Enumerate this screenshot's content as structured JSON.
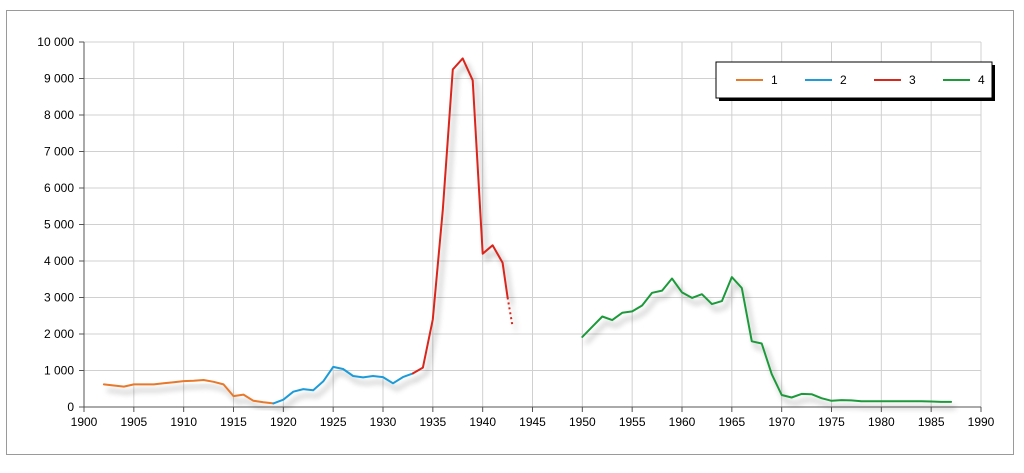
{
  "chart_data": {
    "type": "line",
    "title": "",
    "xlabel": "",
    "ylabel": "",
    "xlim": [
      1900,
      1990
    ],
    "ylim": [
      0,
      10000
    ],
    "x_ticks": [
      1900,
      1905,
      1910,
      1915,
      1920,
      1925,
      1930,
      1935,
      1940,
      1945,
      1950,
      1955,
      1960,
      1965,
      1970,
      1975,
      1980,
      1985,
      1990
    ],
    "y_ticks": [
      0,
      1000,
      2000,
      3000,
      4000,
      5000,
      6000,
      7000,
      8000,
      9000,
      10000
    ],
    "x_tick_labels": [
      "1900",
      "1905",
      "1910",
      "1915",
      "1920",
      "1925",
      "1930",
      "1935",
      "1940",
      "1945",
      "1950",
      "1955",
      "1960",
      "1965",
      "1970",
      "1975",
      "1980",
      "1985",
      "1990"
    ],
    "y_tick_labels": [
      "0",
      "1 000",
      "2 000",
      "3 000",
      "4 000",
      "5 000",
      "6 000",
      "7 000",
      "8 000",
      "9 000",
      "10 000"
    ],
    "grid": true,
    "legend_position": "top-right",
    "series": [
      {
        "name": "1",
        "color": "#e8782a",
        "x": [
          1902,
          1903,
          1904,
          1905,
          1906,
          1907,
          1908,
          1909,
          1910,
          1911,
          1912,
          1913,
          1914,
          1915,
          1916,
          1917,
          1918,
          1919
        ],
        "y": [
          620,
          590,
          560,
          620,
          620,
          620,
          650,
          680,
          710,
          720,
          740,
          690,
          620,
          300,
          340,
          170,
          130,
          100
        ]
      },
      {
        "name": "2",
        "color": "#1f9bd8",
        "x": [
          1919,
          1920,
          1921,
          1922,
          1923,
          1924,
          1925,
          1926,
          1927,
          1928,
          1929,
          1930,
          1931,
          1932,
          1933
        ],
        "y": [
          100,
          200,
          420,
          490,
          460,
          700,
          1100,
          1040,
          850,
          810,
          850,
          820,
          650,
          820,
          920
        ]
      },
      {
        "name": "3",
        "color": "#d9261c",
        "x": [
          1933,
          1934,
          1935,
          1936,
          1937,
          1938,
          1939,
          1940,
          1941,
          1942,
          1942.5
        ],
        "y": [
          920,
          1080,
          2400,
          5400,
          9250,
          9550,
          8950,
          4200,
          4430,
          3950,
          3000
        ],
        "extension": {
          "x": [
            1942.5,
            1943
          ],
          "y": [
            3000,
            2200
          ],
          "dashed": true
        }
      },
      {
        "name": "4",
        "color": "#1f9a3a",
        "x": [
          1950,
          1951,
          1952,
          1953,
          1954,
          1955,
          1956,
          1957,
          1958,
          1959,
          1960,
          1961,
          1962,
          1963,
          1964,
          1965,
          1966,
          1967,
          1968,
          1969,
          1970,
          1971,
          1972,
          1973,
          1974,
          1975,
          1976,
          1977,
          1978,
          1979,
          1980,
          1981,
          1982,
          1983,
          1984,
          1985,
          1986,
          1987
        ],
        "y": [
          1920,
          2200,
          2480,
          2380,
          2580,
          2620,
          2780,
          3130,
          3190,
          3520,
          3140,
          2990,
          3090,
          2820,
          2900,
          3560,
          3260,
          1800,
          1740,
          900,
          330,
          260,
          360,
          350,
          240,
          170,
          190,
          180,
          160,
          160,
          160,
          160,
          160,
          160,
          160,
          150,
          140,
          140
        ]
      }
    ]
  }
}
